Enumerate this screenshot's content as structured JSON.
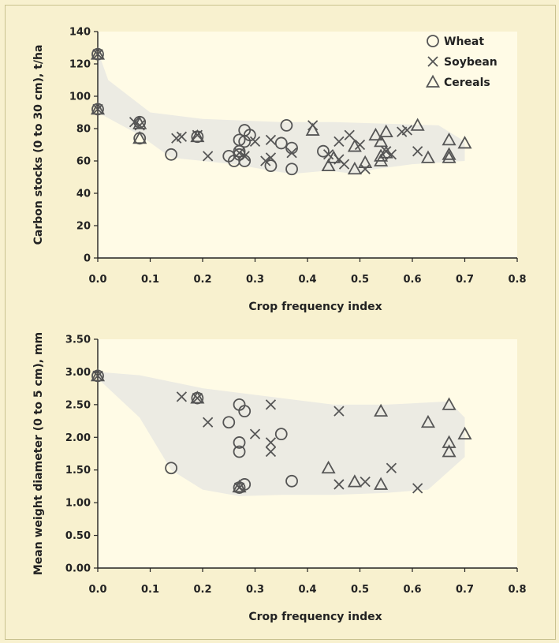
{
  "colors": {
    "background": "#f8f1cf",
    "plot_area": "#fffbe6",
    "envelope": "#ecebe3",
    "marker": "#555555"
  },
  "chart_data": [
    {
      "type": "scatter",
      "xlabel": "Crop frequency index",
      "ylabel": "Carbon stocks (0 to 30 cm), t/ha",
      "xlim": [
        0.0,
        0.8
      ],
      "ylim": [
        0,
        140
      ],
      "xticks": [
        0.0,
        0.1,
        0.2,
        0.3,
        0.4,
        0.5,
        0.6,
        0.7,
        0.8
      ],
      "xtick_labels": [
        "0.0",
        "0.1",
        "0.2",
        "0.3",
        "0.4",
        "0.5",
        "0.6",
        "0.7",
        "0.8"
      ],
      "yticks": [
        0,
        20,
        40,
        60,
        80,
        100,
        120,
        140
      ],
      "ytick_labels": [
        "0",
        "20",
        "40",
        "60",
        "80",
        "100",
        "120",
        "140"
      ],
      "grid": false,
      "legend": "top-right",
      "envelope": [
        [
          0.0,
          128
        ],
        [
          0.0,
          90
        ],
        [
          0.08,
          76
        ],
        [
          0.14,
          62
        ],
        [
          0.26,
          58
        ],
        [
          0.33,
          54
        ],
        [
          0.37,
          52
        ],
        [
          0.44,
          54
        ],
        [
          0.49,
          52
        ],
        [
          0.53,
          55
        ],
        [
          0.6,
          58
        ],
        [
          0.7,
          60
        ],
        [
          0.7,
          72
        ],
        [
          0.65,
          82
        ],
        [
          0.55,
          83
        ],
        [
          0.45,
          84
        ],
        [
          0.35,
          84
        ],
        [
          0.2,
          86
        ],
        [
          0.1,
          90
        ],
        [
          0.02,
          110
        ],
        [
          0.0,
          128
        ]
      ],
      "series": [
        {
          "name": "Wheat",
          "marker": "circle",
          "x": [
            0,
            0,
            0.08,
            0.08,
            0.14,
            0.19,
            0.25,
            0.26,
            0.27,
            0.27,
            0.27,
            0.28,
            0.28,
            0.28,
            0.29,
            0.33,
            0.35,
            0.36,
            0.37,
            0.37,
            0.43
          ],
          "y": [
            126,
            92,
            84,
            74,
            64,
            75,
            63,
            60,
            73,
            66,
            64,
            79,
            72,
            60,
            76,
            57,
            71,
            82,
            68,
            55,
            66
          ]
        },
        {
          "name": "Soybean",
          "marker": "x",
          "x": [
            0,
            0,
            0.07,
            0.08,
            0.15,
            0.16,
            0.19,
            0.21,
            0.27,
            0.28,
            0.3,
            0.32,
            0.33,
            0.33,
            0.37,
            0.41,
            0.44,
            0.46,
            0.46,
            0.47,
            0.48,
            0.5,
            0.51,
            0.55,
            0.56,
            0.58,
            0.59,
            0.61
          ],
          "y": [
            126,
            92,
            84,
            82,
            74,
            75,
            76,
            63,
            65,
            63,
            72,
            60,
            73,
            62,
            65,
            82,
            64,
            72,
            61,
            58,
            76,
            70,
            55,
            66,
            64,
            78,
            79,
            66
          ]
        },
        {
          "name": "Cereals",
          "marker": "triangle",
          "x": [
            0,
            0,
            0.08,
            0.08,
            0.19,
            0.41,
            0.44,
            0.45,
            0.49,
            0.49,
            0.51,
            0.53,
            0.54,
            0.54,
            0.54,
            0.55,
            0.55,
            0.61,
            0.63,
            0.67,
            0.67,
            0.67,
            0.7
          ],
          "y": [
            126,
            92,
            83,
            74,
            75,
            79,
            57,
            62,
            69,
            55,
            59,
            76,
            72,
            63,
            60,
            65,
            78,
            82,
            62,
            73,
            64,
            62,
            71
          ]
        }
      ]
    },
    {
      "type": "scatter",
      "xlabel": "Crop frequency index",
      "ylabel": "Mean weight diameter (0 to 5 cm), mm",
      "xlim": [
        0.0,
        0.8
      ],
      "ylim": [
        0.0,
        3.5
      ],
      "xticks": [
        0.0,
        0.1,
        0.2,
        0.3,
        0.4,
        0.5,
        0.6,
        0.7,
        0.8
      ],
      "xtick_labels": [
        "0.0",
        "0.1",
        "0.2",
        "0.3",
        "0.4",
        "0.5",
        "0.6",
        "0.7",
        "0.8"
      ],
      "yticks": [
        0.0,
        0.5,
        1.0,
        1.5,
        2.0,
        2.5,
        3.0,
        3.5
      ],
      "ytick_labels": [
        "0.00",
        "0.50",
        "1.00",
        "1.50",
        "2.00",
        "2.50",
        "3.00",
        "3.50"
      ],
      "grid": false,
      "envelope": [
        [
          0.0,
          3.0
        ],
        [
          0.0,
          2.9
        ],
        [
          0.08,
          2.3
        ],
        [
          0.14,
          1.5
        ],
        [
          0.2,
          1.2
        ],
        [
          0.27,
          1.1
        ],
        [
          0.35,
          1.12
        ],
        [
          0.45,
          1.12
        ],
        [
          0.55,
          1.15
        ],
        [
          0.63,
          1.2
        ],
        [
          0.7,
          1.7
        ],
        [
          0.7,
          2.3
        ],
        [
          0.67,
          2.55
        ],
        [
          0.55,
          2.5
        ],
        [
          0.45,
          2.5
        ],
        [
          0.35,
          2.6
        ],
        [
          0.2,
          2.75
        ],
        [
          0.08,
          2.95
        ],
        [
          0.0,
          3.0
        ]
      ],
      "series": [
        {
          "name": "Wheat",
          "marker": "circle",
          "x": [
            0,
            0.14,
            0.19,
            0.25,
            0.27,
            0.27,
            0.27,
            0.27,
            0.28,
            0.28,
            0.35,
            0.37
          ],
          "y": [
            2.94,
            1.53,
            2.6,
            2.23,
            2.5,
            1.92,
            1.78,
            1.23,
            2.4,
            1.28,
            2.05,
            1.33
          ]
        },
        {
          "name": "Soybean",
          "marker": "x",
          "x": [
            0,
            0.16,
            0.19,
            0.21,
            0.27,
            0.3,
            0.33,
            0.33,
            0.33,
            0.46,
            0.46,
            0.51,
            0.56,
            0.61
          ],
          "y": [
            2.94,
            2.62,
            2.6,
            2.23,
            1.23,
            2.05,
            2.5,
            1.92,
            1.78,
            2.4,
            1.28,
            1.32,
            1.53,
            1.22
          ]
        },
        {
          "name": "Cereals",
          "marker": "triangle",
          "x": [
            0,
            0.19,
            0.27,
            0.44,
            0.49,
            0.54,
            0.54,
            0.63,
            0.67,
            0.67,
            0.67,
            0.7
          ],
          "y": [
            2.94,
            2.6,
            1.24,
            1.53,
            1.32,
            2.4,
            1.28,
            2.23,
            2.5,
            1.92,
            1.78,
            2.05
          ]
        }
      ]
    }
  ]
}
